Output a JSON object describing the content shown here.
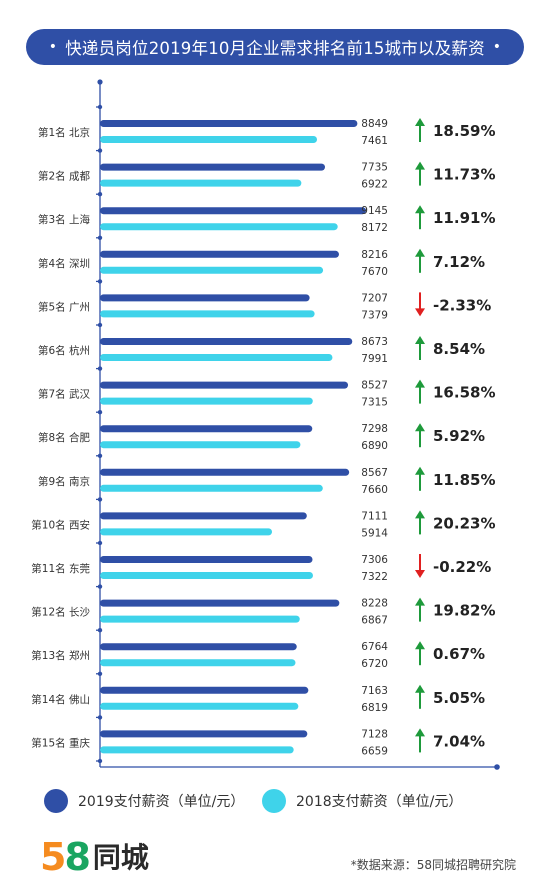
{
  "title": "快递员岗位2019年10月企业需求排名前15城市以及薪资",
  "title_dot": "•",
  "legend": {
    "series_2019": "2019支付薪资（单位/元）",
    "series_2018": "2018支付薪资（单位/元）"
  },
  "logo": {
    "number": "58",
    "name": "同城"
  },
  "source": "*数据来源：58同城招聘研究院",
  "colors": {
    "title_bg": "#2f4fa6",
    "bar_2019": "#2f4fa6",
    "bar_2018": "#3fd3ea",
    "up": "#1e9a3b",
    "down": "#e02020",
    "axis": "#2f4fa6"
  },
  "chart_data": {
    "type": "bar",
    "orientation": "horizontal",
    "title": "快递员岗位2019年10月企业需求排名前15城市以及薪资",
    "categories": [
      "第1名 北京",
      "第2名 成都",
      "第3名 上海",
      "第4名 深圳",
      "第5名 广州",
      "第6名 杭州",
      "第7名 武汉",
      "第8名 合肥",
      "第9名 南京",
      "第10名 西安",
      "第11名 东莞",
      "第12名 长沙",
      "第13名 郑州",
      "第14名 佛山",
      "第15名 重庆"
    ],
    "series": [
      {
        "name": "2019支付薪资（单位/元）",
        "values": [
          8849,
          7735,
          9145,
          8216,
          7207,
          8673,
          8527,
          7298,
          8567,
          7111,
          7306,
          8228,
          6764,
          7163,
          7128
        ]
      },
      {
        "name": "2018支付薪资（单位/元）",
        "values": [
          7461,
          6922,
          8172,
          7670,
          7379,
          7991,
          7315,
          6890,
          7660,
          5914,
          7322,
          6867,
          6720,
          6819,
          6659
        ]
      }
    ],
    "change": [
      "18.59%",
      "11.73%",
      "11.91%",
      "7.12%",
      "-2.33%",
      "8.54%",
      "16.58%",
      "5.92%",
      "11.85%",
      "20.23%",
      "-0.22%",
      "19.82%",
      "0.67%",
      "5.05%",
      "7.04%"
    ],
    "change_direction": [
      "up",
      "up",
      "up",
      "up",
      "down",
      "up",
      "up",
      "up",
      "up",
      "up",
      "down",
      "up",
      "up",
      "up",
      "up"
    ],
    "legend_position": "bottom"
  }
}
